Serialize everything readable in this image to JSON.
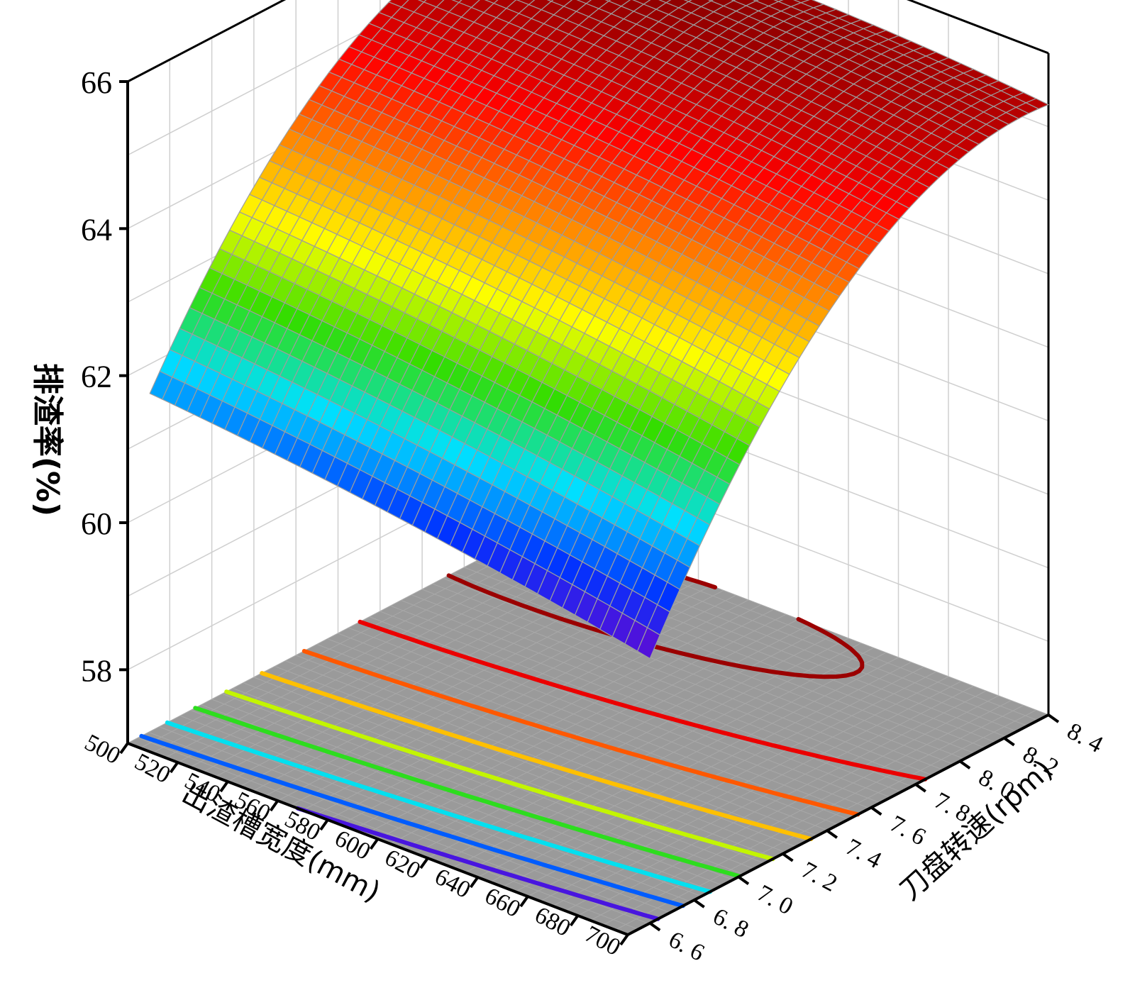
{
  "chart_data": {
    "type": "surface",
    "title": "",
    "xlabel": "出渣槽宽度(mm)",
    "ylabel": "刀盘转速(rpm)",
    "zlabel": "排渣率(%)",
    "x_range": [
      500,
      700
    ],
    "y_range": [
      6.5,
      8.4
    ],
    "z_range": [
      57,
      66
    ],
    "x_ticks": [
      "500",
      "520",
      "540",
      "560",
      "580",
      "600",
      "620",
      "640",
      "660",
      "680",
      "700"
    ],
    "y_ticks": [
      "6. 6",
      "6. 8",
      "7. 0",
      "7. 2",
      "7. 4",
      "7. 6",
      "7. 8",
      "8. 0",
      "8. 2",
      "8. 4"
    ],
    "z_ticks": [
      "58",
      "60",
      "62",
      "64",
      "66"
    ],
    "grid": true,
    "colormap": [
      "#7a00c8",
      "#0033ff",
      "#00e0ff",
      "#33dd00",
      "#ffff00",
      "#ff8800",
      "#ff0000",
      "#8b0000"
    ],
    "surface_samples": {
      "x": [
        500,
        600,
        700
      ],
      "y": [
        6.6,
        7.5,
        8.4
      ],
      "z": [
        [
          61.6,
          64.9,
          65.4
        ],
        [
          61.2,
          64.7,
          65.5
        ],
        [
          60.6,
          64.3,
          65.3
        ]
      ]
    },
    "contour_levels": [
      60.8,
      61.4,
      62.0,
      62.6,
      63.2,
      63.8,
      64.4,
      65.0,
      65.5
    ]
  }
}
